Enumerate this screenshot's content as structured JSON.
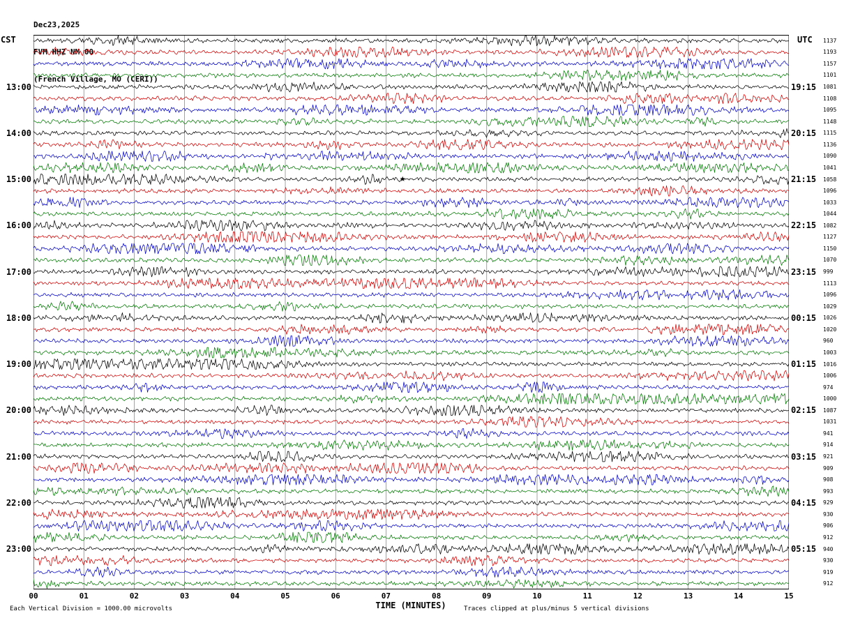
{
  "header": {
    "date": "Dec23,2025",
    "station": "FVM HHZ NM 00",
    "location": "(French Village, MO (CERI))"
  },
  "axes": {
    "left_title": "CST",
    "right_title": "UTC",
    "x_label": "TIME (MINUTES)",
    "x_ticks": [
      "00",
      "01",
      "02",
      "03",
      "04",
      "05",
      "06",
      "07",
      "08",
      "09",
      "10",
      "11",
      "12",
      "13",
      "14",
      "15"
    ]
  },
  "footer": {
    "left": "Each Vertical Division = 1000.00 microvolts",
    "right": "Traces clipped at plus/minus 5 vertical divisions"
  },
  "chart_data": {
    "type": "line",
    "title": "FVM HHZ NM 00 (French Village, MO (CERI)) Dec23,2025 helicorder",
    "xlabel": "TIME (MINUTES)",
    "x_range_minutes": [
      0,
      15
    ],
    "minutes_per_row": 15,
    "rows_per_hour": 4,
    "row_count": 48,
    "grid": true,
    "trace_colors": [
      "#000000",
      "#d40000",
      "#0000cc",
      "#007a00"
    ],
    "gridline_color": "#666666",
    "hour_rows": [
      {
        "cst": "13:00",
        "utc": "19:15",
        "row_index": 4
      },
      {
        "cst": "14:00",
        "utc": "20:15",
        "row_index": 8
      },
      {
        "cst": "15:00",
        "utc": "21:15",
        "row_index": 12
      },
      {
        "cst": "16:00",
        "utc": "22:15",
        "row_index": 16
      },
      {
        "cst": "17:00",
        "utc": "23:15",
        "row_index": 20
      },
      {
        "cst": "18:00",
        "utc": "00:15",
        "row_index": 24
      },
      {
        "cst": "19:00",
        "utc": "01:15",
        "row_index": 28
      },
      {
        "cst": "20:00",
        "utc": "02:15",
        "row_index": 32
      },
      {
        "cst": "21:00",
        "utc": "03:15",
        "row_index": 36
      },
      {
        "cst": "22:00",
        "utc": "04:15",
        "row_index": 40
      },
      {
        "cst": "23:00",
        "utc": "05:15",
        "row_index": 44
      }
    ],
    "dc_offsets": [
      1137,
      1193,
      1157,
      1101,
      1081,
      1108,
      1095,
      1148,
      1115,
      1136,
      1090,
      1041,
      1058,
      1096,
      1033,
      1044,
      1082,
      1127,
      1150,
      1070,
      999,
      1113,
      1096,
      1029,
      1026,
      1020,
      960,
      1003,
      1016,
      1006,
      974,
      1000,
      1087,
      1031,
      941,
      914,
      921,
      909,
      908,
      993,
      929,
      930,
      906,
      912,
      940,
      930,
      919,
      912
    ],
    "annotations": [
      {
        "symbol": "★",
        "row_index": 12,
        "minute": 7.33,
        "name": "event-marker"
      }
    ]
  }
}
